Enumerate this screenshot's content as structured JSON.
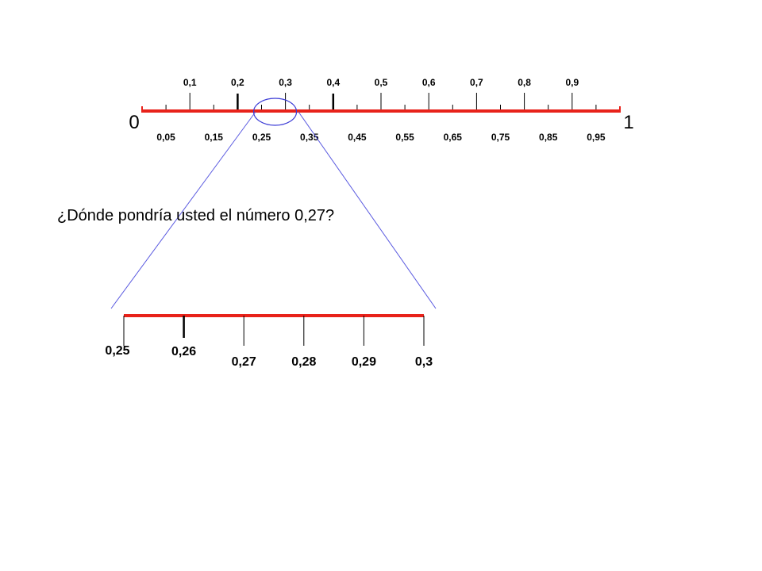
{
  "colors": {
    "number_line": "#e8221a",
    "tick": "#000000",
    "zoom_circle": "#3b3bd6",
    "zoom_lines": "#5a5ae0"
  },
  "number_line": {
    "start_label": "0",
    "end_label": "1",
    "range": [
      0,
      1
    ],
    "top_labels": [
      {
        "value": 0.1,
        "text": "0,1"
      },
      {
        "value": 0.2,
        "text": "0,2"
      },
      {
        "value": 0.3,
        "text": "0,3"
      },
      {
        "value": 0.4,
        "text": "0,4"
      },
      {
        "value": 0.5,
        "text": "0,5"
      },
      {
        "value": 0.6,
        "text": "0,6"
      },
      {
        "value": 0.7,
        "text": "0,7"
      },
      {
        "value": 0.8,
        "text": "0,8"
      },
      {
        "value": 0.9,
        "text": "0,9"
      }
    ],
    "bottom_labels": [
      {
        "value": 0.05,
        "text": "0,05"
      },
      {
        "value": 0.15,
        "text": "0,15"
      },
      {
        "value": 0.25,
        "text": "0,25"
      },
      {
        "value": 0.35,
        "text": "0,35"
      },
      {
        "value": 0.45,
        "text": "0,45"
      },
      {
        "value": 0.55,
        "text": "0,55"
      },
      {
        "value": 0.65,
        "text": "0,65"
      },
      {
        "value": 0.75,
        "text": "0,75"
      },
      {
        "value": 0.85,
        "text": "0,85"
      },
      {
        "value": 0.95,
        "text": "0,95"
      }
    ],
    "bold_ticks": [
      0.2,
      0.4
    ]
  },
  "question": "¿Dónde pondría usted el número 0,27?",
  "zoom_line": {
    "range": [
      0.25,
      0.3
    ],
    "labels": [
      {
        "value": 0.25,
        "text": "0,25"
      },
      {
        "value": 0.26,
        "text": "0,26"
      },
      {
        "value": 0.27,
        "text": "0,27"
      },
      {
        "value": 0.28,
        "text": "0,28"
      },
      {
        "value": 0.29,
        "text": "0,29"
      },
      {
        "value": 0.3,
        "text": "0,3"
      }
    ],
    "bold_ticks": [
      0.26
    ]
  }
}
